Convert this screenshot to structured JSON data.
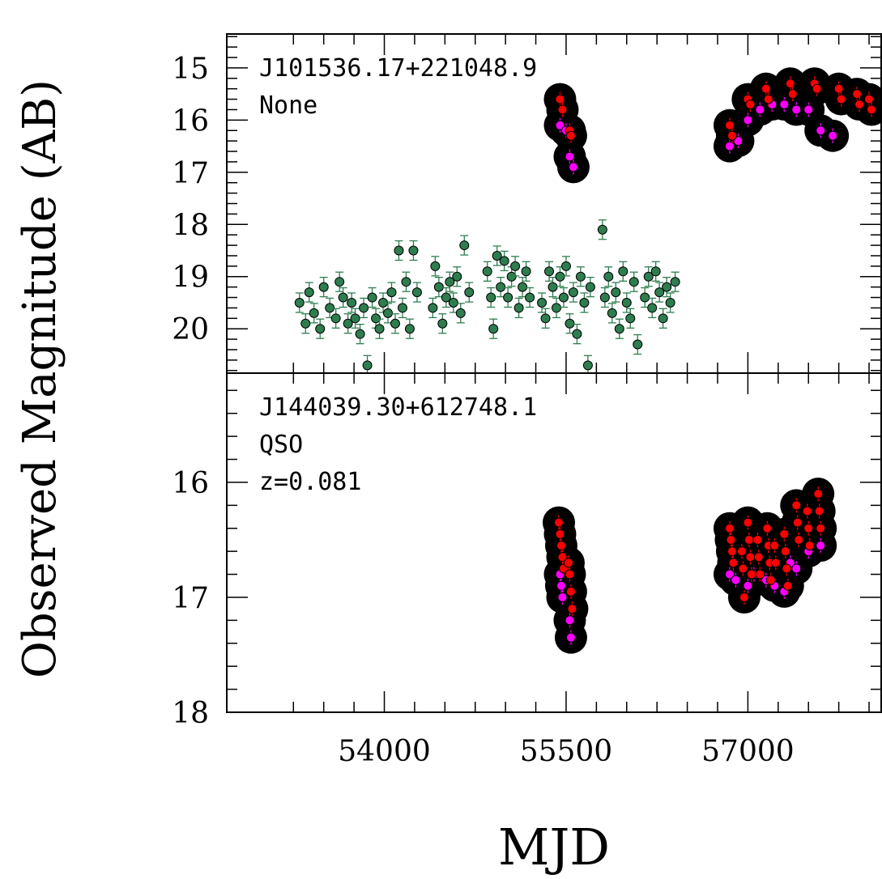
{
  "chart_data": {
    "type": "scatter",
    "xlabel": "MJD",
    "ylabel": "Observed Magnitude (AB)",
    "x_ticks": [
      54000,
      55500,
      57000
    ],
    "xlim": [
      52700,
      58100
    ],
    "panels": [
      {
        "annotation": [
          "J101536.17+221048.9",
          "None"
        ],
        "ylim": [
          20.85,
          14.35
        ],
        "y_ticks": [
          15,
          16,
          17,
          18,
          19,
          20
        ],
        "series": [
          {
            "marker": "green",
            "error_bars": true,
            "points": [
              [
                53300,
                19.5
              ],
              [
                53350,
                19.9
              ],
              [
                53380,
                19.3
              ],
              [
                53420,
                19.7
              ],
              [
                53470,
                20.0
              ],
              [
                53500,
                19.2
              ],
              [
                53550,
                19.6
              ],
              [
                53600,
                19.8
              ],
              [
                53630,
                19.1
              ],
              [
                53660,
                19.4
              ],
              [
                53700,
                19.9
              ],
              [
                53730,
                19.5
              ],
              [
                53760,
                19.8
              ],
              [
                53800,
                20.1
              ],
              [
                53830,
                19.6
              ],
              [
                53860,
                20.7
              ],
              [
                53900,
                19.4
              ],
              [
                53930,
                19.8
              ],
              [
                53960,
                20.0
              ],
              [
                53990,
                19.5
              ],
              [
                54030,
                19.7
              ],
              [
                54060,
                19.3
              ],
              [
                54090,
                19.9
              ],
              [
                54120,
                18.5
              ],
              [
                54150,
                19.6
              ],
              [
                54180,
                19.1
              ],
              [
                54210,
                20.0
              ],
              [
                54240,
                18.5
              ],
              [
                54270,
                19.3
              ],
              [
                54400,
                19.6
              ],
              [
                54420,
                18.8
              ],
              [
                54450,
                19.2
              ],
              [
                54480,
                19.9
              ],
              [
                54510,
                19.4
              ],
              [
                54540,
                19.1
              ],
              [
                54570,
                19.5
              ],
              [
                54600,
                19.0
              ],
              [
                54630,
                19.7
              ],
              [
                54660,
                18.4
              ],
              [
                54700,
                19.3
              ],
              [
                54850,
                18.9
              ],
              [
                54880,
                19.4
              ],
              [
                54900,
                20.0
              ],
              [
                54930,
                18.6
              ],
              [
                54960,
                19.2
              ],
              [
                54990,
                18.7
              ],
              [
                55020,
                19.4
              ],
              [
                55050,
                19.0
              ],
              [
                55080,
                18.8
              ],
              [
                55110,
                19.6
              ],
              [
                55140,
                19.2
              ],
              [
                55170,
                18.9
              ],
              [
                55200,
                19.4
              ],
              [
                55300,
                19.5
              ],
              [
                55330,
                19.8
              ],
              [
                55360,
                18.9
              ],
              [
                55390,
                19.2
              ],
              [
                55420,
                19.6
              ],
              [
                55450,
                19.0
              ],
              [
                55480,
                19.4
              ],
              [
                55500,
                18.8
              ],
              [
                55530,
                19.9
              ],
              [
                55560,
                19.3
              ],
              [
                55590,
                20.1
              ],
              [
                55620,
                19.0
              ],
              [
                55650,
                19.5
              ],
              [
                55680,
                20.7
              ],
              [
                55700,
                19.2
              ],
              [
                55800,
                18.1
              ],
              [
                55820,
                19.4
              ],
              [
                55850,
                19.0
              ],
              [
                55880,
                19.7
              ],
              [
                55910,
                19.3
              ],
              [
                55940,
                20.0
              ],
              [
                55970,
                18.9
              ],
              [
                56000,
                19.5
              ],
              [
                56030,
                19.8
              ],
              [
                56060,
                19.1
              ],
              [
                56090,
                20.3
              ],
              [
                56150,
                19.4
              ],
              [
                56180,
                19.0
              ],
              [
                56210,
                19.6
              ],
              [
                56240,
                18.9
              ],
              [
                56270,
                19.3
              ],
              [
                56300,
                19.8
              ],
              [
                56330,
                19.2
              ],
              [
                56360,
                19.5
              ],
              [
                56400,
                19.1
              ]
            ]
          },
          {
            "marker": "magenta",
            "halo": true,
            "points": [
              [
                55450,
                16.1
              ],
              [
                55500,
                16.2
              ],
              [
                55530,
                16.7
              ],
              [
                55560,
                16.9
              ],
              [
                56850,
                16.5
              ],
              [
                56920,
                16.4
              ],
              [
                57000,
                16.0
              ],
              [
                57100,
                15.8
              ],
              [
                57200,
                15.7
              ],
              [
                57300,
                15.7
              ],
              [
                57400,
                15.8
              ],
              [
                57500,
                15.8
              ],
              [
                57600,
                16.2
              ],
              [
                57700,
                16.3
              ]
            ]
          },
          {
            "marker": "red",
            "halo": true,
            "points": [
              [
                55450,
                15.6
              ],
              [
                55470,
                15.8
              ],
              [
                55530,
                16.2
              ],
              [
                55540,
                16.3
              ],
              [
                56850,
                16.1
              ],
              [
                56870,
                16.3
              ],
              [
                57000,
                15.6
              ],
              [
                57020,
                15.7
              ],
              [
                57150,
                15.4
              ],
              [
                57170,
                15.6
              ],
              [
                57350,
                15.3
              ],
              [
                57370,
                15.5
              ],
              [
                57550,
                15.3
              ],
              [
                57570,
                15.4
              ],
              [
                57750,
                15.4
              ],
              [
                57770,
                15.6
              ],
              [
                57900,
                15.5
              ],
              [
                57920,
                15.7
              ],
              [
                58000,
                15.6
              ],
              [
                58020,
                15.8
              ]
            ]
          }
        ]
      },
      {
        "annotation": [
          "J144039.30+612748.1",
          "QSO",
          "z=0.081"
        ],
        "ylim": [
          18.0,
          15.05
        ],
        "y_ticks": [
          16,
          17,
          18
        ],
        "series": [
          {
            "marker": "magenta",
            "halo": true,
            "points": [
              [
                55450,
                16.8
              ],
              [
                55460,
                16.9
              ],
              [
                55470,
                17.0
              ],
              [
                55530,
                17.2
              ],
              [
                55540,
                17.35
              ],
              [
                56850,
                16.8
              ],
              [
                56900,
                16.85
              ],
              [
                57000,
                16.9
              ],
              [
                57050,
                16.8
              ],
              [
                57150,
                16.85
              ],
              [
                57220,
                16.9
              ],
              [
                57300,
                16.95
              ],
              [
                57350,
                16.7
              ],
              [
                57400,
                16.75
              ],
              [
                57500,
                16.6
              ],
              [
                57600,
                16.55
              ]
            ]
          },
          {
            "marker": "red",
            "halo": true,
            "points": [
              [
                55440,
                16.35
              ],
              [
                55450,
                16.45
              ],
              [
                55460,
                16.55
              ],
              [
                55470,
                16.65
              ],
              [
                55480,
                16.75
              ],
              [
                55520,
                16.7
              ],
              [
                55530,
                16.8
              ],
              [
                55540,
                16.95
              ],
              [
                55550,
                17.1
              ],
              [
                56850,
                16.4
              ],
              [
                56860,
                16.5
              ],
              [
                56870,
                16.6
              ],
              [
                56880,
                16.7
              ],
              [
                56950,
                16.6
              ],
              [
                56960,
                16.75
              ],
              [
                56970,
                17.0
              ],
              [
                57000,
                16.35
              ],
              [
                57010,
                16.5
              ],
              [
                57020,
                16.65
              ],
              [
                57030,
                16.8
              ],
              [
                57080,
                16.5
              ],
              [
                57090,
                16.65
              ],
              [
                57100,
                16.8
              ],
              [
                57160,
                16.4
              ],
              [
                57170,
                16.55
              ],
              [
                57180,
                16.7
              ],
              [
                57190,
                16.85
              ],
              [
                57220,
                16.55
              ],
              [
                57230,
                16.7
              ],
              [
                57300,
                16.45
              ],
              [
                57310,
                16.6
              ],
              [
                57320,
                16.75
              ],
              [
                57330,
                16.9
              ],
              [
                57400,
                16.2
              ],
              [
                57410,
                16.35
              ],
              [
                57420,
                16.5
              ],
              [
                57490,
                16.25
              ],
              [
                57500,
                16.4
              ],
              [
                57510,
                16.55
              ],
              [
                57580,
                16.1
              ],
              [
                57590,
                16.25
              ],
              [
                57600,
                16.4
              ]
            ]
          }
        ]
      }
    ]
  },
  "colors": {
    "green": "#2e7d4f",
    "red": "#ff0000",
    "magenta": "#ff00ff",
    "halo": "#000000"
  }
}
